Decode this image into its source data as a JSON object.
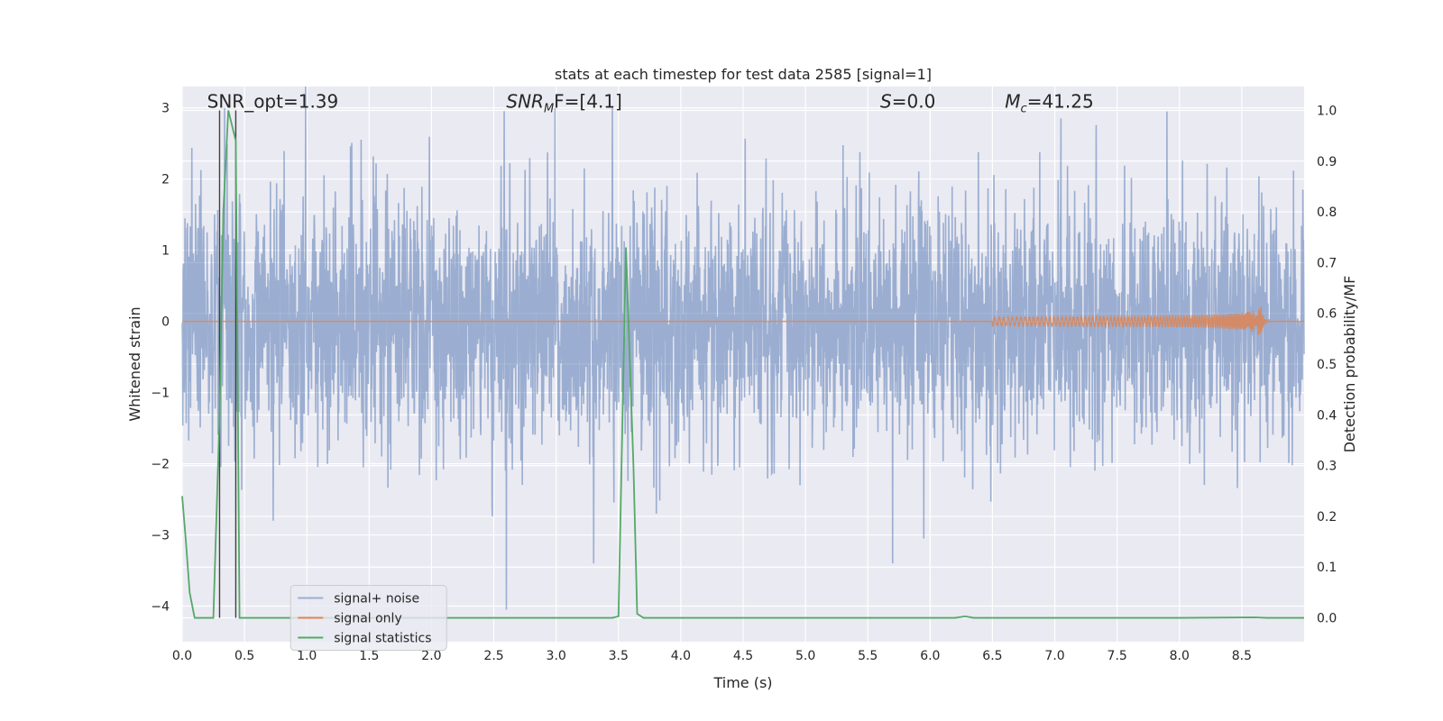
{
  "chart_data": {
    "type": "line",
    "title": "stats at each timestep for test data 2585 [signal=1]",
    "xlabel": "Time (s)",
    "ylabel": "Whitened strain",
    "ylabel_right": "Detection probability/MF",
    "xlim": [
      0.0,
      9.0
    ],
    "ylim": [
      -4.5,
      3.3
    ],
    "ylim_right": [
      -0.047,
      1.047
    ],
    "x_ticks": [
      "0.0",
      "0.5",
      "1.0",
      "1.5",
      "2.0",
      "2.5",
      "3.0",
      "3.5",
      "4.0",
      "4.5",
      "5.0",
      "5.5",
      "6.0",
      "6.5",
      "7.0",
      "7.5",
      "8.0",
      "8.5"
    ],
    "y_ticks": [
      "−4",
      "−3",
      "−2",
      "−1",
      "0",
      "1",
      "2",
      "3"
    ],
    "y_ticks_right": [
      "0.0",
      "0.1",
      "0.2",
      "0.3",
      "0.4",
      "0.5",
      "0.6",
      "0.7",
      "0.8",
      "0.9",
      "1.0"
    ],
    "grid": true,
    "legend_position": "lower-left",
    "annotations": [
      {
        "id": "snr_opt",
        "text": "SNR_opt=1.39",
        "x": 0.2
      },
      {
        "id": "snr_mf",
        "prefix": "SNR",
        "sub": "M",
        "suffix": "F=[4.1]",
        "x": 2.6
      },
      {
        "id": "s_stat",
        "prefix": "S",
        "suffix": "=0.0",
        "x": 5.6
      },
      {
        "id": "mc",
        "prefix": "M",
        "sub": "c",
        "suffix": "=41.25",
        "x": 6.6
      }
    ],
    "vlines_x": [
      0.3,
      0.43
    ],
    "series": [
      {
        "name": "signal+ noise",
        "color": "#4c72b0",
        "opacity": 0.5,
        "duration": 9.0,
        "noise_sigma": 0.85,
        "noise_extremes": [
          {
            "x": 2.6,
            "y": -4.05
          },
          {
            "x": 5.7,
            "y": -3.4
          },
          {
            "x": 3.3,
            "y": -3.4
          },
          {
            "x": 2.99,
            "y": 3.0
          },
          {
            "x": 3.45,
            "y": 3.0
          },
          {
            "x": 0.34,
            "y": 3.0
          },
          {
            "x": 7.9,
            "y": 2.95
          },
          {
            "x": 5.95,
            "y": -3.05
          },
          {
            "x": 0.73,
            "y": -2.8
          }
        ]
      },
      {
        "name": "signal only",
        "color": "#dd8452",
        "chirp_start": 6.5,
        "chirp_peak": 8.65,
        "chirp_peak_amplitude": 0.3
      },
      {
        "name": "signal statistics",
        "color": "#55a868",
        "axis": "right",
        "x": [
          0.0,
          0.03,
          0.06,
          0.1,
          0.15,
          0.25,
          0.3,
          0.33,
          0.37,
          0.4,
          0.43,
          0.46,
          0.5,
          0.55,
          1.0,
          2.0,
          3.0,
          3.45,
          3.5,
          3.56,
          3.62,
          3.65,
          3.7,
          4.0,
          5.0,
          6.0,
          6.2,
          6.28,
          6.35,
          6.5,
          7.0,
          8.0,
          8.6,
          8.7,
          9.0
        ],
        "values": [
          0.24,
          0.15,
          0.05,
          0.0,
          0.0,
          0.0,
          0.4,
          0.8,
          1.0,
          0.97,
          0.94,
          0.0,
          0.0,
          0.0,
          0.0,
          0.0,
          0.0,
          0.0,
          0.003,
          0.73,
          0.3,
          0.008,
          0.0,
          0.0,
          0.0,
          0.0,
          0.0,
          0.003,
          0.0,
          0.0,
          0.0,
          0.0,
          0.001,
          0.0,
          0.0
        ]
      }
    ]
  }
}
